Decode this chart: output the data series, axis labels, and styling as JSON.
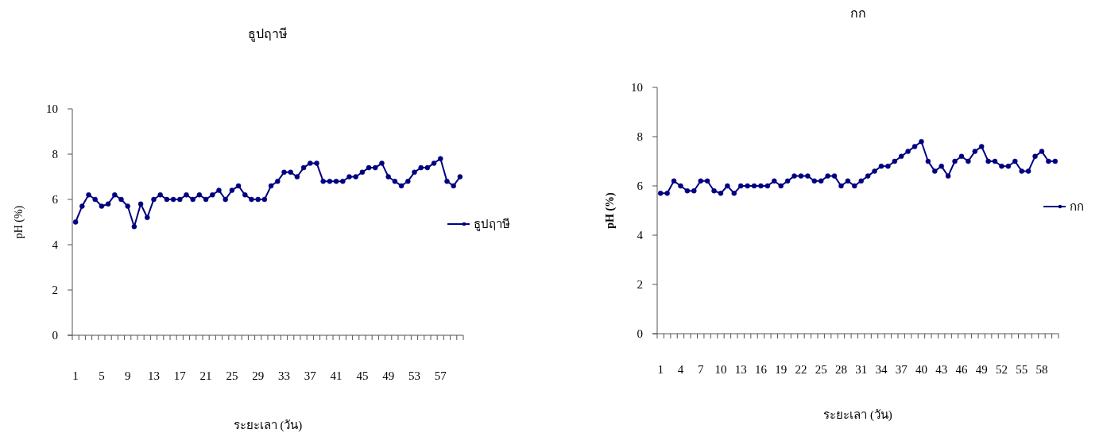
{
  "chart_data": [
    {
      "type": "line",
      "title": "ธูปฤาษี",
      "xlabel": "ระยะเลา (วัน)",
      "ylabel": "pH (%)",
      "marker": "circle",
      "legend": "right",
      "ylim": [
        0,
        10
      ],
      "yticks": [
        0,
        2,
        4,
        6,
        8,
        10
      ],
      "categories": [
        "1",
        null,
        null,
        null,
        "5",
        null,
        null,
        null,
        "9",
        null,
        null,
        null,
        "13",
        null,
        null,
        null,
        "17",
        null,
        null,
        null,
        "21",
        null,
        null,
        null,
        "25",
        null,
        null,
        null,
        "29",
        null,
        null,
        null,
        "33",
        null,
        null,
        null,
        "37",
        null,
        null,
        null,
        "41",
        null,
        null,
        null,
        "45",
        null,
        null,
        null,
        "49",
        null,
        null,
        null,
        "53",
        null,
        null,
        null,
        "57",
        null,
        null,
        null
      ],
      "series": [
        {
          "name": "ธูปฤาษี",
          "color": "#000080",
          "values": [
            5.0,
            5.7,
            6.2,
            6.0,
            5.7,
            5.8,
            6.2,
            6.0,
            5.7,
            4.8,
            5.8,
            5.2,
            6.0,
            6.2,
            6.0,
            6.0,
            6.0,
            6.2,
            6.0,
            6.2,
            6.0,
            6.2,
            6.4,
            6.0,
            6.4,
            6.6,
            6.2,
            6.0,
            6.0,
            6.0,
            6.6,
            6.8,
            7.2,
            7.2,
            7.0,
            7.4,
            7.6,
            7.6,
            6.8,
            6.8,
            6.8,
            6.8,
            7.0,
            7.0,
            7.2,
            7.4,
            7.4,
            7.6,
            7.0,
            6.8,
            6.6,
            6.8,
            7.2,
            7.4,
            7.4,
            7.6,
            7.8,
            6.8,
            6.6,
            7.0
          ]
        }
      ]
    },
    {
      "type": "line",
      "title": "กก",
      "xlabel": "ระยะเลา (วัน)",
      "ylabel": "pH (%)",
      "marker": "circle",
      "legend": "right",
      "ylim": [
        0,
        10
      ],
      "yticks": [
        0,
        2,
        4,
        6,
        8,
        10
      ],
      "categories": [
        "1",
        null,
        null,
        "4",
        null,
        null,
        "7",
        null,
        null,
        "10",
        null,
        null,
        "13",
        null,
        null,
        "16",
        null,
        null,
        "19",
        null,
        null,
        "22",
        null,
        null,
        "25",
        null,
        null,
        "28",
        null,
        null,
        "31",
        null,
        null,
        "34",
        null,
        null,
        "37",
        null,
        null,
        "40",
        null,
        null,
        "43",
        null,
        null,
        "46",
        null,
        null,
        "49",
        null,
        null,
        "52",
        null,
        null,
        "55",
        null,
        null,
        "58",
        null,
        null
      ],
      "series": [
        {
          "name": "กก",
          "color": "#000080",
          "values": [
            5.7,
            5.7,
            6.2,
            6.0,
            5.8,
            5.8,
            6.2,
            6.2,
            5.8,
            5.7,
            6.0,
            5.7,
            6.0,
            6.0,
            6.0,
            6.0,
            6.0,
            6.2,
            6.0,
            6.2,
            6.4,
            6.4,
            6.4,
            6.2,
            6.2,
            6.4,
            6.4,
            6.0,
            6.2,
            6.0,
            6.2,
            6.4,
            6.6,
            6.8,
            6.8,
            7.0,
            7.2,
            7.4,
            7.6,
            7.8,
            7.0,
            6.6,
            6.8,
            6.4,
            7.0,
            7.2,
            7.0,
            7.4,
            7.6,
            7.0,
            7.0,
            6.8,
            6.8,
            7.0,
            6.6,
            6.6,
            7.2,
            7.4,
            7.0,
            7.0
          ]
        }
      ]
    }
  ]
}
